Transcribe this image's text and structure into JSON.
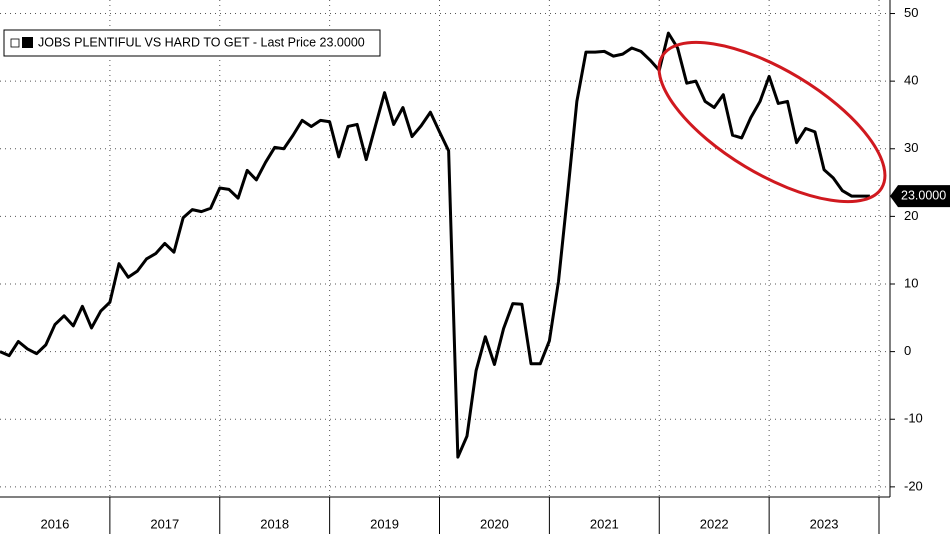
{
  "chart_data": {
    "type": "line",
    "legend_label": "JOBS PLENTIFUL VS HARD TO GET - Last Price 23.0000",
    "last_label": "23.0000",
    "x": [
      2016,
      2016.083,
      2016.167,
      2016.25,
      2016.333,
      2016.417,
      2016.5,
      2016.583,
      2016.667,
      2016.75,
      2016.833,
      2016.917,
      2017,
      2017.083,
      2017.167,
      2017.25,
      2017.333,
      2017.417,
      2017.5,
      2017.583,
      2017.667,
      2017.75,
      2017.833,
      2017.917,
      2018,
      2018.083,
      2018.167,
      2018.25,
      2018.333,
      2018.417,
      2018.5,
      2018.583,
      2018.667,
      2018.75,
      2018.833,
      2018.917,
      2019,
      2019.083,
      2019.167,
      2019.25,
      2019.333,
      2019.417,
      2019.5,
      2019.583,
      2019.667,
      2019.75,
      2019.833,
      2019.917,
      2020,
      2020.083,
      2020.167,
      2020.25,
      2020.333,
      2020.417,
      2020.5,
      2020.583,
      2020.667,
      2020.75,
      2020.833,
      2020.917,
      2021,
      2021.083,
      2021.167,
      2021.25,
      2021.333,
      2021.417,
      2021.5,
      2021.583,
      2021.667,
      2021.75,
      2021.833,
      2021.917,
      2022,
      2022.083,
      2022.167,
      2022.25,
      2022.333,
      2022.417,
      2022.5,
      2022.583,
      2022.667,
      2022.75,
      2022.833,
      2022.917,
      2023,
      2023.083,
      2023.167,
      2023.25,
      2023.333,
      2023.417,
      2023.5,
      2023.583,
      2023.667,
      2023.75,
      2023.833,
      2023.917
    ],
    "series": [
      {
        "name": "JOBS PLENTIFUL VS HARD TO GET",
        "color": "#000000",
        "values": [
          0,
          -0.6,
          1.5,
          0.4,
          -0.3,
          1,
          4,
          5.3,
          3.8,
          6.7,
          3.5,
          6,
          7.3,
          13,
          11,
          11.9,
          13.7,
          14.5,
          16,
          14.7,
          19.8,
          21,
          20.7,
          21.2,
          24.2,
          24,
          22.7,
          26.8,
          25.4,
          28,
          30.2,
          30,
          32,
          34.2,
          33.3,
          34.2,
          34,
          28.8,
          33.3,
          33.6,
          28.4,
          33.4,
          38.3,
          33.6,
          36.1,
          31.8,
          33.4,
          35.4,
          32.5,
          29.7,
          -15.6,
          -12.5,
          -2.8,
          2.2,
          -1.9,
          3.4,
          7.1,
          7,
          -1.8,
          -1.8,
          1.6,
          10.4,
          23.5,
          37,
          44.3,
          44.3,
          44.4,
          43.7,
          44,
          44.9,
          44.4,
          43.1,
          41.6,
          47.1,
          44.9,
          39.7,
          40,
          37,
          36.1,
          38,
          32,
          31.6,
          34.6,
          37,
          40.7,
          36.7,
          37,
          30.9,
          33,
          32.5,
          26.9,
          25.7,
          23.8,
          23,
          23,
          23
        ]
      }
    ],
    "xlim": [
      2016,
      2024.1
    ],
    "xticks": [
      {
        "value": 2016.5,
        "label": "2016"
      },
      {
        "value": 2017.5,
        "label": "2017"
      },
      {
        "value": 2018.5,
        "label": "2018"
      },
      {
        "value": 2019.5,
        "label": "2019"
      },
      {
        "value": 2020.5,
        "label": "2020"
      },
      {
        "value": 2021.5,
        "label": "2021"
      },
      {
        "value": 2022.5,
        "label": "2022"
      },
      {
        "value": 2023.5,
        "label": "2023"
      }
    ],
    "ylim": [
      -21.5,
      52
    ],
    "yticks": [
      -20,
      -10,
      0,
      10,
      20,
      30,
      40,
      50
    ],
    "grid": true
  }
}
